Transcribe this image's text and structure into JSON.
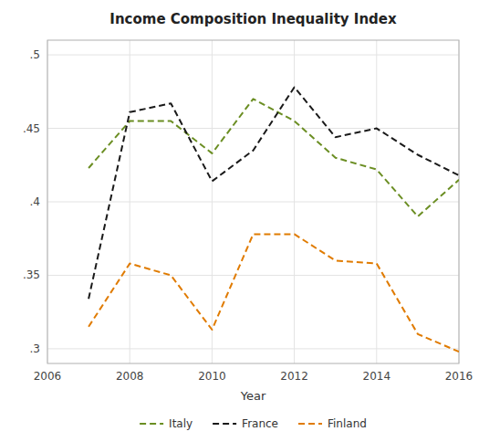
{
  "chart_data": {
    "type": "line",
    "title": "Income Composition Inequality Index",
    "xlabel": "Year",
    "x": [
      2007,
      2008,
      2009,
      2010,
      2011,
      2012,
      2013,
      2014,
      2015,
      2016
    ],
    "series": [
      {
        "name": "Italy",
        "color": "#6b8e23",
        "line_style": "dashed",
        "values": [
          0.423,
          0.455,
          0.455,
          0.433,
          0.47,
          0.455,
          0.43,
          0.422,
          0.39,
          0.415
        ]
      },
      {
        "name": "France",
        "color": "#1a1a1a",
        "line_style": "dashed",
        "values": [
          0.334,
          0.461,
          0.467,
          0.414,
          0.435,
          0.478,
          0.444,
          0.45,
          0.432,
          0.418
        ]
      },
      {
        "name": "Finland",
        "color": "#e07b00",
        "line_style": "dashed",
        "values": [
          0.315,
          0.358,
          0.35,
          0.313,
          0.378,
          0.378,
          0.36,
          0.358,
          0.31,
          0.298
        ]
      }
    ],
    "xlim": [
      2006,
      2016
    ],
    "xticks": [
      2006,
      2008,
      2010,
      2012,
      2014,
      2016
    ],
    "ylim": [
      0.29,
      0.51
    ],
    "yticks": [
      {
        "value": 0.3,
        "label": ".3"
      },
      {
        "value": 0.35,
        "label": ".35"
      },
      {
        "value": 0.4,
        "label": ".4"
      },
      {
        "value": 0.45,
        "label": ".45"
      },
      {
        "value": 0.5,
        "label": ".5"
      }
    ],
    "grid": true,
    "legend": "bottom"
  }
}
